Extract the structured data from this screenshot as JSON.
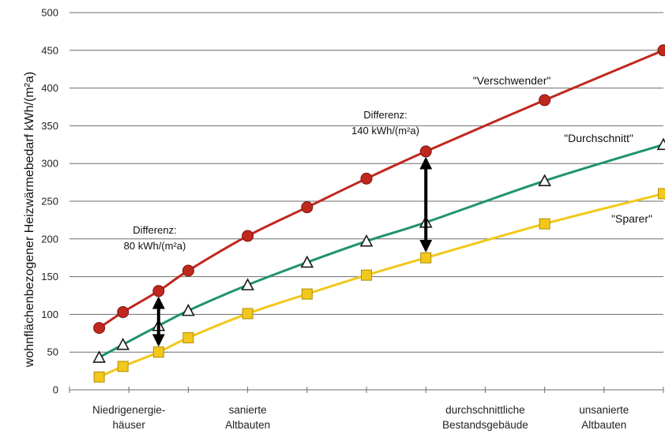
{
  "chart_data": {
    "type": "line",
    "ylabel": "wohnflächenbezogener Heizwärmebedarf kWh/(m²a)",
    "ylim": [
      0,
      500
    ],
    "yticks": [
      0,
      50,
      100,
      150,
      200,
      250,
      300,
      350,
      400,
      450,
      500
    ],
    "grid": "horizontal",
    "x_categories": [
      {
        "label": "Niedrigenergie-\nhäuser",
        "x": 1
      },
      {
        "label": "sanierte\nAltbauten",
        "x": 3
      },
      {
        "label": "durchschnittliche\nBestandsgebäude",
        "x": 7
      },
      {
        "label": "unsanierte\nAltbauten",
        "x": 9
      }
    ],
    "series": [
      {
        "name": "\"Verschwender\"",
        "color": "#c0281e",
        "marker": "circle",
        "x": [
          0.5,
          0.9,
          1.5,
          2.0,
          3.0,
          4.0,
          5.0,
          6.0,
          8.0,
          10.0
        ],
        "values": [
          82,
          103,
          131,
          158,
          204,
          242,
          280,
          316,
          384,
          450
        ]
      },
      {
        "name": "\"Durchschnitt\"",
        "color": "#1f9467",
        "marker": "triangle",
        "x": [
          0.5,
          0.9,
          1.5,
          2.0,
          3.0,
          4.0,
          5.0,
          6.0,
          8.0,
          10.0
        ],
        "values": [
          43,
          60,
          85,
          105,
          139,
          169,
          197,
          222,
          277,
          325
        ]
      },
      {
        "name": "\"Sparer\"",
        "color": "#f1c81b",
        "marker": "square",
        "x": [
          0.5,
          0.9,
          1.5,
          2.0,
          3.0,
          4.0,
          5.0,
          6.0,
          8.0,
          10.0
        ],
        "values": [
          17,
          31,
          50,
          69,
          101,
          127,
          152,
          175,
          220,
          260
        ]
      }
    ],
    "annotations": [
      {
        "line1": "Differenz:",
        "line2": "80 kWh/(m²a)",
        "x": 1.5,
        "from": 131,
        "to": 50
      },
      {
        "line1": "Differenz:",
        "line2": "140 kWh/(m²a)",
        "x": 6.0,
        "from": 316,
        "to": 175
      }
    ]
  }
}
